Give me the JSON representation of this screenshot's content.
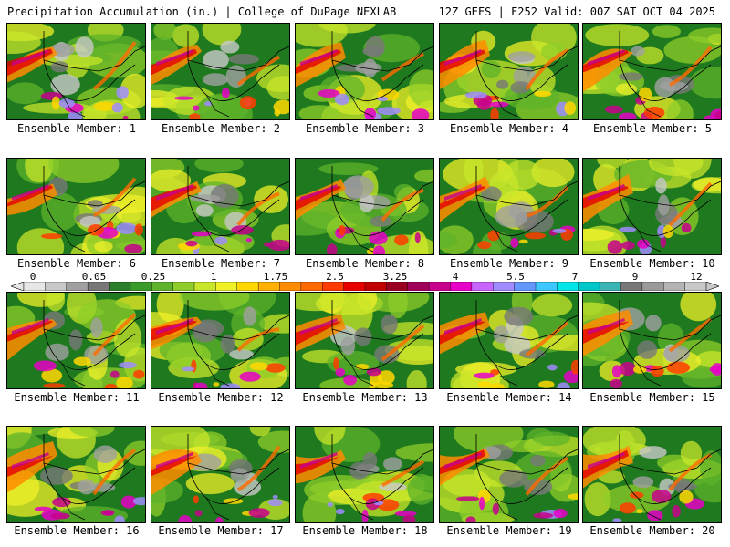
{
  "header": {
    "left": "Precipitation Accumulation (in.) | College of DuPage NEXLAB",
    "right": "12Z GEFS | F252 Valid: 00Z SAT OCT 04 2025"
  },
  "panels": [
    {
      "label": "Ensemble Member: 1"
    },
    {
      "label": "Ensemble Member: 2"
    },
    {
      "label": "Ensemble Member: 3"
    },
    {
      "label": "Ensemble Member: 4"
    },
    {
      "label": "Ensemble Member: 5"
    },
    {
      "label": "Ensemble Member: 6"
    },
    {
      "label": "Ensemble Member: 7"
    },
    {
      "label": "Ensemble Member: 8"
    },
    {
      "label": "Ensemble Member: 9"
    },
    {
      "label": "Ensemble Member: 10"
    },
    {
      "label": "Ensemble Member: 11"
    },
    {
      "label": "Ensemble Member: 12"
    },
    {
      "label": "Ensemble Member: 13"
    },
    {
      "label": "Ensemble Member: 14"
    },
    {
      "label": "Ensemble Member: 15"
    },
    {
      "label": "Ensemble Member: 16"
    },
    {
      "label": "Ensemble Member: 17"
    },
    {
      "label": "Ensemble Member: 18"
    },
    {
      "label": "Ensemble Member: 19"
    },
    {
      "label": "Ensemble Member: 20"
    }
  ],
  "colorbar": {
    "tick_labels": [
      "0",
      "0.05",
      "0.25",
      "1",
      "1.75",
      "2.5",
      "3.25",
      "4",
      "5.5",
      "7",
      "9",
      "12"
    ],
    "colors": [
      "#e6e6e6",
      "#c8c8c8",
      "#a0a0a0",
      "#787878",
      "#2a7f2a",
      "#3a9a2a",
      "#5fb32a",
      "#8fce2a",
      "#c8e62a",
      "#f0f028",
      "#ffd700",
      "#ffb000",
      "#ff8c00",
      "#ff6a00",
      "#ff3c00",
      "#e60000",
      "#c00000",
      "#9a0020",
      "#a0005a",
      "#c8008c",
      "#e600c8",
      "#c864ff",
      "#a08cff",
      "#6496ff",
      "#3cc8ff",
      "#00e6e6",
      "#00c8c8",
      "#3cb4b4",
      "#787878",
      "#9a9a9a",
      "#b4b4b4",
      "#c8c8c8"
    ]
  }
}
